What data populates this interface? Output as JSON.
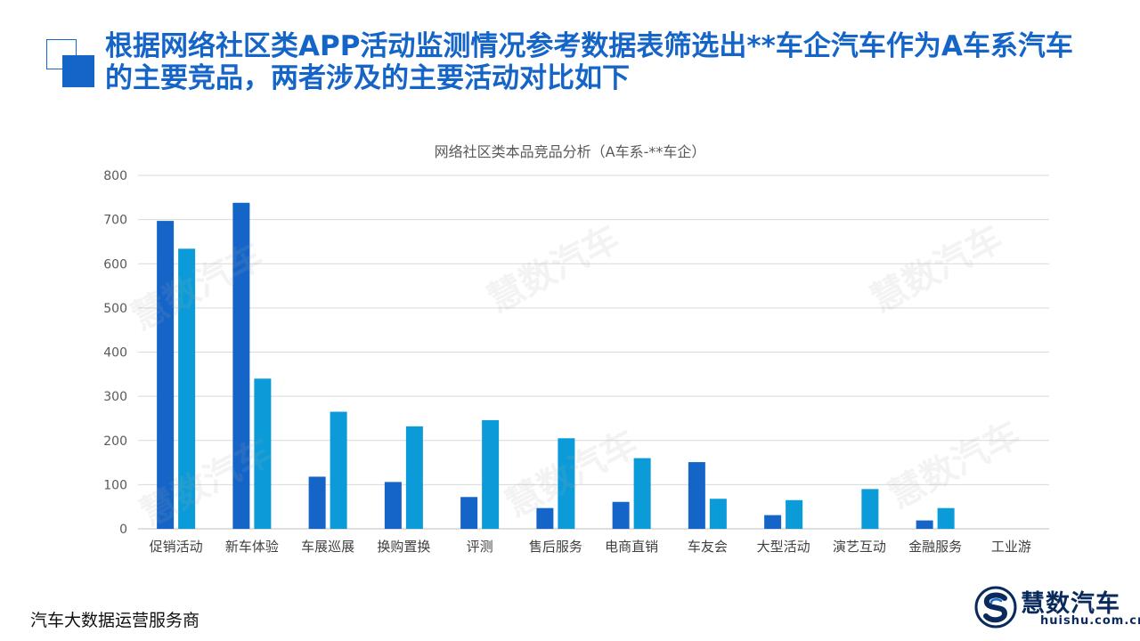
{
  "slide": {
    "title": "根据网络社区类APP活动监测情况参考数据表筛选出**车企汽车作为A车系汽车的主要竞品，两者涉及的主要活动对比如下"
  },
  "chart_data": {
    "type": "bar",
    "title": "网络社区类本品竞品分析（A车系-**车企）",
    "categories": [
      "促销活动",
      "新车体验",
      "车展巡展",
      "换购置换",
      "评测",
      "售后服务",
      "电商直销",
      "车友会",
      "大型活动",
      "演艺互动",
      "金融服务",
      "工业游"
    ],
    "series": [
      {
        "values": [
          697,
          738,
          118,
          106,
          72,
          47,
          61,
          151,
          31,
          0,
          19,
          0
        ],
        "color": "#1565c8"
      },
      {
        "values": [
          634,
          340,
          265,
          232,
          246,
          205,
          160,
          68,
          65,
          90,
          47,
          0
        ],
        "color": "#0b9bd8"
      }
    ],
    "yticks": [
      0,
      100,
      200,
      300,
      400,
      500,
      600,
      700,
      800
    ],
    "ylim": [
      0,
      800
    ],
    "grid": true,
    "legend": "none"
  },
  "watermark": {
    "text": "慧数汽车"
  },
  "footer": {
    "left_text": "汽车大数据运营服务商"
  },
  "logo": {
    "name": "慧数汽车",
    "url": "huishu.com.cn"
  }
}
